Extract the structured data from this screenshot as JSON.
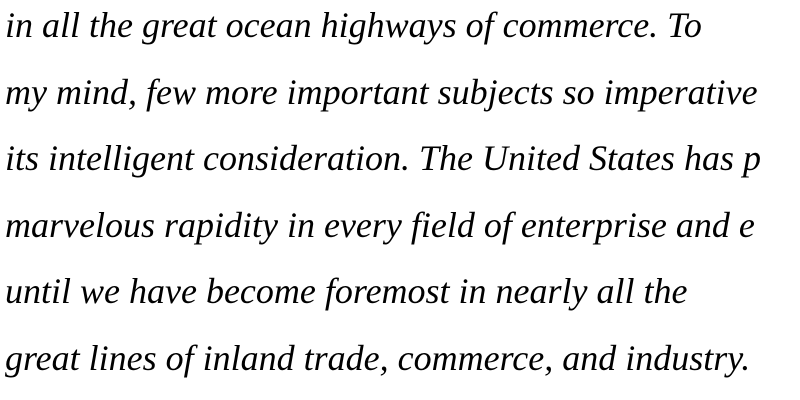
{
  "document": {
    "lines": [
      "in all the great ocean highways of commerce. To",
      "my mind, few more important subjects so imperative",
      "its intelligent consideration. The United States has p",
      "marvelous rapidity in every field of enterprise and e",
      "until we have become foremost in nearly all the",
      "great lines of inland trade, commerce, and industry."
    ]
  }
}
